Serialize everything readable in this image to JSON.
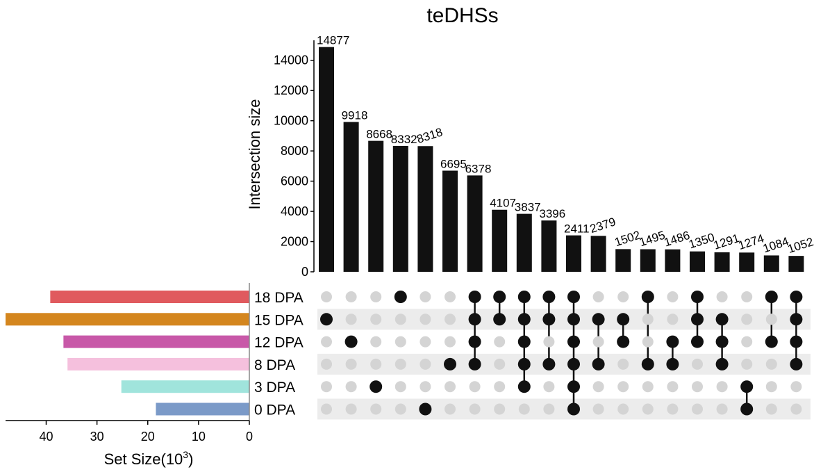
{
  "chart_data": {
    "type": "upset",
    "title": "teDHSs",
    "ylabel": "Intersection size",
    "xlabel_sets": "Set Size(10",
    "xlabel_sets_sup": "3",
    "xlabel_sets_close": ")",
    "ylim": [
      0,
      15000
    ],
    "yticks": [
      0,
      2000,
      4000,
      6000,
      8000,
      10000,
      12000,
      14000
    ],
    "setsize_xlim": [
      0,
      48
    ],
    "setsize_ticks": [
      40,
      30,
      20,
      10,
      0
    ],
    "sets": [
      {
        "name": "18 DPA",
        "size": 39.2,
        "color": "#e05a5e"
      },
      {
        "name": "15 DPA",
        "size": 48.0,
        "color": "#d4861e"
      },
      {
        "name": "12 DPA",
        "size": 36.6,
        "color": "#c858a8"
      },
      {
        "name": "8 DPA",
        "size": 35.8,
        "color": "#f5c0dd"
      },
      {
        "name": "3 DPA",
        "size": 25.2,
        "color": "#a0e4dc"
      },
      {
        "name": "0 DPA",
        "size": 18.4,
        "color": "#7b9ac8"
      }
    ],
    "intersections": [
      {
        "value": 14877,
        "label": "14877",
        "sets": [
          "15 DPA"
        ]
      },
      {
        "value": 9918,
        "label": "9918",
        "sets": [
          "12 DPA"
        ]
      },
      {
        "value": 8668,
        "label": "8668",
        "sets": [
          "3 DPA"
        ]
      },
      {
        "value": 8332,
        "label": "8332",
        "sets": [
          "18 DPA"
        ]
      },
      {
        "value": 8318,
        "label": "8318",
        "sets": [
          "0 DPA"
        ]
      },
      {
        "value": 6695,
        "label": "6695",
        "sets": [
          "8 DPA"
        ]
      },
      {
        "value": 6378,
        "label": "6378",
        "sets": [
          "18 DPA",
          "15 DPA",
          "12 DPA",
          "8 DPA"
        ]
      },
      {
        "value": 4107,
        "label": "4107",
        "sets": [
          "18 DPA",
          "15 DPA"
        ]
      },
      {
        "value": 3837,
        "label": "3837",
        "sets": [
          "18 DPA",
          "15 DPA",
          "12 DPA",
          "8 DPA",
          "3 DPA"
        ]
      },
      {
        "value": 3396,
        "label": "3396",
        "sets": [
          "18 DPA",
          "15 DPA",
          "8 DPA"
        ]
      },
      {
        "value": 2411,
        "label": "2411",
        "sets": [
          "18 DPA",
          "15 DPA",
          "12 DPA",
          "8 DPA",
          "3 DPA",
          "0 DPA"
        ]
      },
      {
        "value": 2379,
        "label": "2379",
        "sets": [
          "15 DPA",
          "8 DPA"
        ]
      },
      {
        "value": 1502,
        "label": "1502",
        "sets": [
          "15 DPA",
          "12 DPA"
        ]
      },
      {
        "value": 1495,
        "label": "1495",
        "sets": [
          "18 DPA",
          "8 DPA"
        ]
      },
      {
        "value": 1486,
        "label": "1486",
        "sets": [
          "12 DPA",
          "8 DPA"
        ]
      },
      {
        "value": 1350,
        "label": "1350",
        "sets": [
          "18 DPA",
          "15 DPA",
          "12 DPA"
        ]
      },
      {
        "value": 1291,
        "label": "1291",
        "sets": [
          "15 DPA",
          "12 DPA",
          "8 DPA"
        ]
      },
      {
        "value": 1274,
        "label": "1274",
        "sets": [
          "3 DPA",
          "0 DPA"
        ]
      },
      {
        "value": 1084,
        "label": "1084",
        "sets": [
          "18 DPA",
          "12 DPA"
        ]
      },
      {
        "value": 1052,
        "label": "1052",
        "sets": [
          "18 DPA",
          "15 DPA",
          "12 DPA",
          "8 DPA"
        ]
      }
    ],
    "colors": {
      "bar": "#111111",
      "dot_active": "#111111",
      "dot_inactive": "#d4d4d4",
      "row_shade": "#ececec"
    }
  }
}
